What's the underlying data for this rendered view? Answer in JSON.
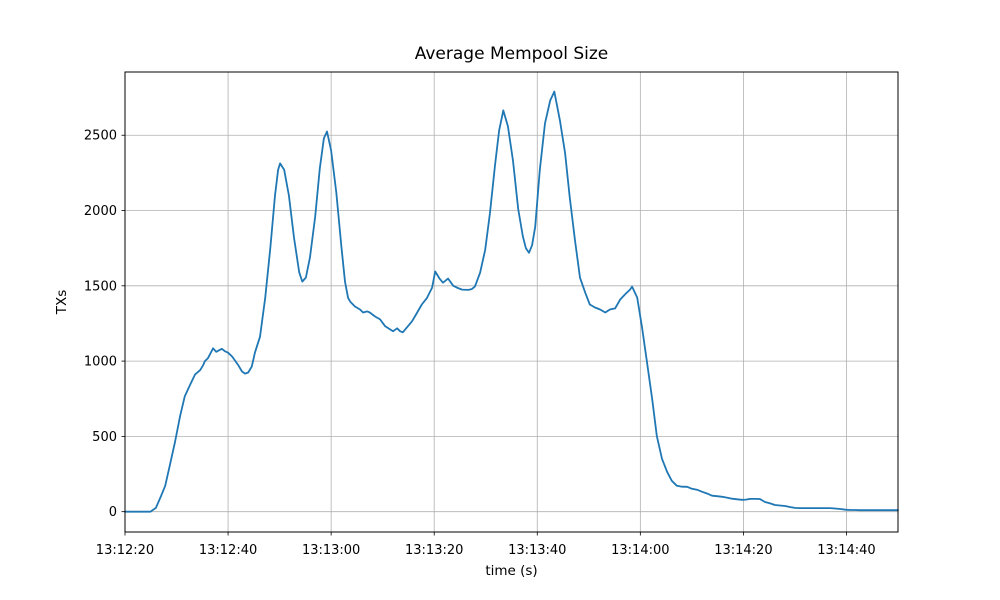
{
  "page": {
    "background": "#ffffff"
  },
  "chart_data": {
    "type": "line",
    "title": "Average Mempool Size",
    "xlabel": "time (s)",
    "ylabel": "TXs",
    "grid": true,
    "legend": false,
    "colors": {
      "line": "#1f77b4",
      "grid": "#b0b0b0",
      "spine": "#000000",
      "text": "#000000"
    },
    "x_axis": {
      "tick_labels": [
        "13:12:20",
        "13:12:40",
        "13:13:00",
        "13:13:20",
        "13:13:40",
        "13:14:00",
        "13:14:20",
        "13:14:40"
      ],
      "tick_seconds": [
        0,
        20,
        40,
        60,
        80,
        100,
        120,
        140
      ],
      "xlim_seconds": [
        0,
        150
      ],
      "start_time": "13:12:20",
      "end_time": "13:14:50"
    },
    "y_axis": {
      "tick_labels": [
        "0",
        "500",
        "1000",
        "1500",
        "2000",
        "2500"
      ],
      "ticks": [
        0,
        500,
        1000,
        1500,
        2000,
        2500
      ],
      "ylim": [
        -135,
        2920
      ]
    },
    "series": [
      {
        "name": "average-mempool-size",
        "color": "#1f77b4",
        "points": [
          [
            0,
            0
          ],
          [
            2,
            0
          ],
          [
            4,
            0
          ],
          [
            4.9,
            0
          ],
          [
            6,
            25
          ],
          [
            7,
            105
          ],
          [
            7.8,
            172
          ],
          [
            8.7,
            307
          ],
          [
            9.7,
            463
          ],
          [
            10.7,
            635
          ],
          [
            11.6,
            767
          ],
          [
            12.6,
            840
          ],
          [
            13.6,
            912
          ],
          [
            14.6,
            940
          ],
          [
            15.2,
            975
          ],
          [
            15.5,
            1000
          ],
          [
            16.1,
            1020
          ],
          [
            17.1,
            1085
          ],
          [
            17.7,
            1062
          ],
          [
            18.8,
            1082
          ],
          [
            19.4,
            1065
          ],
          [
            20,
            1056
          ],
          [
            20.8,
            1030
          ],
          [
            21.9,
            977
          ],
          [
            22.7,
            931
          ],
          [
            23.3,
            917
          ],
          [
            23.9,
            924
          ],
          [
            24.6,
            964
          ],
          [
            25.2,
            1056
          ],
          [
            26.2,
            1162
          ],
          [
            27.2,
            1420
          ],
          [
            28.2,
            1750
          ],
          [
            29.1,
            2100
          ],
          [
            29.7,
            2270
          ],
          [
            30.1,
            2313
          ],
          [
            30.9,
            2270
          ],
          [
            31.8,
            2100
          ],
          [
            32.8,
            1820
          ],
          [
            33.8,
            1590
          ],
          [
            34.4,
            1528
          ],
          [
            35.1,
            1555
          ],
          [
            35.9,
            1690
          ],
          [
            36.9,
            1960
          ],
          [
            37.8,
            2280
          ],
          [
            38.6,
            2480
          ],
          [
            39.2,
            2525
          ],
          [
            40,
            2400
          ],
          [
            41,
            2120
          ],
          [
            42,
            1760
          ],
          [
            42.7,
            1527
          ],
          [
            43.3,
            1420
          ],
          [
            43.7,
            1395
          ],
          [
            44.6,
            1363
          ],
          [
            45.6,
            1343
          ],
          [
            46.2,
            1323
          ],
          [
            47,
            1330
          ],
          [
            47.5,
            1323
          ],
          [
            48.5,
            1297
          ],
          [
            49.5,
            1277
          ],
          [
            50.5,
            1231
          ],
          [
            51.4,
            1211
          ],
          [
            52,
            1198
          ],
          [
            52.8,
            1218
          ],
          [
            53.4,
            1198
          ],
          [
            53.9,
            1191
          ],
          [
            54.7,
            1224
          ],
          [
            55.7,
            1264
          ],
          [
            56.7,
            1323
          ],
          [
            57.6,
            1376
          ],
          [
            58.6,
            1420
          ],
          [
            59.6,
            1488
          ],
          [
            60.2,
            1595
          ],
          [
            61,
            1549
          ],
          [
            61.7,
            1521
          ],
          [
            62.7,
            1548
          ],
          [
            63.7,
            1500
          ],
          [
            64.4,
            1488
          ],
          [
            65.4,
            1475
          ],
          [
            66.6,
            1473
          ],
          [
            67.3,
            1478
          ],
          [
            67.9,
            1495
          ],
          [
            68.9,
            1587
          ],
          [
            69.9,
            1739
          ],
          [
            70.8,
            1980
          ],
          [
            71.8,
            2300
          ],
          [
            72.6,
            2530
          ],
          [
            73.4,
            2665
          ],
          [
            74.3,
            2560
          ],
          [
            75.3,
            2330
          ],
          [
            76.3,
            2010
          ],
          [
            77.2,
            1830
          ],
          [
            77.8,
            1750
          ],
          [
            78.4,
            1719
          ],
          [
            79,
            1770
          ],
          [
            79.6,
            1892
          ],
          [
            80.5,
            2269
          ],
          [
            81.5,
            2579
          ],
          [
            82.5,
            2731
          ],
          [
            83.3,
            2790
          ],
          [
            84.4,
            2599
          ],
          [
            85.4,
            2381
          ],
          [
            86.3,
            2090
          ],
          [
            87.3,
            1806
          ],
          [
            88.3,
            1554
          ],
          [
            89.3,
            1455
          ],
          [
            90.2,
            1376
          ],
          [
            91.2,
            1356
          ],
          [
            92.2,
            1343
          ],
          [
            93.2,
            1323
          ],
          [
            94.1,
            1343
          ],
          [
            95.1,
            1350
          ],
          [
            96.1,
            1409
          ],
          [
            97,
            1442
          ],
          [
            98,
            1475
          ],
          [
            98.4,
            1495
          ],
          [
            99.4,
            1422
          ],
          [
            100.3,
            1230
          ],
          [
            101.3,
            992
          ],
          [
            102.3,
            747
          ],
          [
            103.2,
            503
          ],
          [
            104.2,
            351
          ],
          [
            105.2,
            265
          ],
          [
            106.1,
            205
          ],
          [
            107.1,
            172
          ],
          [
            108.1,
            166
          ],
          [
            109.1,
            165
          ],
          [
            110,
            152
          ],
          [
            111,
            146
          ],
          [
            112,
            132
          ],
          [
            113,
            120
          ],
          [
            113.9,
            106
          ],
          [
            114.9,
            103
          ],
          [
            115.9,
            99
          ],
          [
            116.9,
            92
          ],
          [
            117.8,
            86
          ],
          [
            118.8,
            82
          ],
          [
            119.7,
            79
          ],
          [
            120.5,
            80
          ],
          [
            121.3,
            85
          ],
          [
            122.3,
            85
          ],
          [
            123.2,
            84
          ],
          [
            124.2,
            64
          ],
          [
            125.2,
            55
          ],
          [
            126.1,
            44
          ],
          [
            127.1,
            41
          ],
          [
            128.1,
            38
          ],
          [
            129,
            31
          ],
          [
            130,
            25
          ],
          [
            131,
            24
          ],
          [
            132,
            24
          ],
          [
            133.5,
            24
          ],
          [
            135,
            24
          ],
          [
            136.8,
            24
          ],
          [
            137.8,
            21
          ],
          [
            138.8,
            18
          ],
          [
            139.8,
            13
          ],
          [
            140.7,
            11
          ],
          [
            141.7,
            11
          ],
          [
            142.6,
            10
          ],
          [
            144,
            10
          ],
          [
            146,
            10
          ],
          [
            148,
            10
          ],
          [
            150,
            10
          ]
        ]
      }
    ]
  }
}
